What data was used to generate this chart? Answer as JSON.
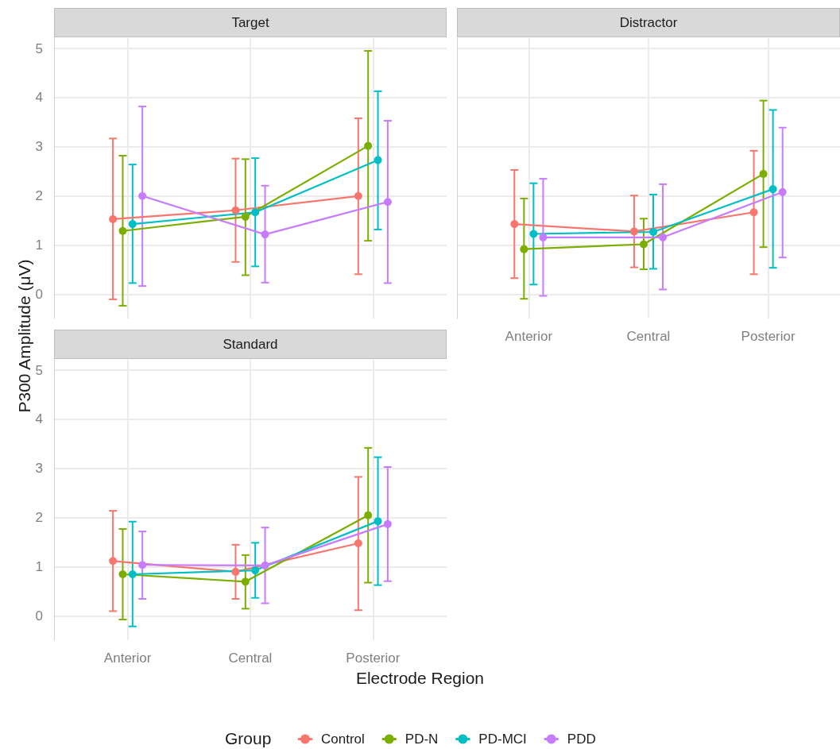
{
  "chart_data": [
    {
      "type": "line",
      "title": "Target",
      "ylabel": "P300 Amplitude (μV)",
      "categories": [
        null,
        null,
        null
      ],
      "ylim": [
        -0.49,
        5.21
      ],
      "yticks": [
        0,
        1,
        2,
        3,
        4,
        5
      ],
      "grid": true,
      "marker": "circle",
      "tick_labels": "y",
      "series": [
        {
          "color": "#f8766d",
          "values": [
            1.53,
            1.71,
            2.0
          ],
          "errors": [
            [
              -0.1,
              3.17
            ],
            [
              0.66,
              2.76
            ],
            [
              0.41,
              3.58
            ]
          ]
        },
        {
          "color": "#7cae00",
          "values": [
            1.29,
            1.58,
            3.02
          ],
          "errors": [
            [
              -0.23,
              2.82
            ],
            [
              0.39,
              2.75
            ],
            [
              1.09,
              4.95
            ]
          ]
        },
        {
          "color": "#00bfc4",
          "values": [
            1.43,
            1.67,
            2.73
          ],
          "errors": [
            [
              0.23,
              2.64
            ],
            [
              0.57,
              2.77
            ],
            [
              1.32,
              4.13
            ]
          ]
        },
        {
          "color": "#c77cff",
          "values": [
            2.0,
            1.22,
            1.88
          ],
          "errors": [
            [
              0.17,
              3.82
            ],
            [
              0.24,
              2.21
            ],
            [
              0.23,
              3.53
            ]
          ]
        }
      ]
    },
    {
      "type": "line",
      "title": "Distractor",
      "categories": [
        "Anterior",
        "Central",
        "Posterior"
      ],
      "ylim": [
        -0.49,
        5.21
      ],
      "yticks": [
        0,
        1,
        2,
        3,
        4,
        5
      ],
      "grid": true,
      "marker": "circle",
      "tick_labels": "x",
      "series": [
        {
          "color": "#f8766d",
          "values": [
            1.43,
            1.28,
            1.67
          ],
          "errors": [
            [
              0.33,
              2.53
            ],
            [
              0.55,
              2.01
            ],
            [
              0.41,
              2.92
            ]
          ]
        },
        {
          "color": "#7cae00",
          "values": [
            0.92,
            1.02,
            2.45
          ],
          "errors": [
            [
              -0.09,
              1.95
            ],
            [
              0.51,
              1.54
            ],
            [
              0.96,
              3.94
            ]
          ]
        },
        {
          "color": "#00bfc4",
          "values": [
            1.23,
            1.27,
            2.14
          ],
          "errors": [
            [
              0.2,
              2.26
            ],
            [
              0.52,
              2.03
            ],
            [
              0.54,
              3.75
            ]
          ]
        },
        {
          "color": "#c77cff",
          "values": [
            1.16,
            1.16,
            2.08
          ],
          "errors": [
            [
              -0.03,
              2.35
            ],
            [
              0.1,
              2.24
            ],
            [
              0.75,
              3.39
            ]
          ]
        }
      ]
    },
    {
      "type": "line",
      "title": "Standard",
      "xlabel": "Electrode Region",
      "legend_title": "Group",
      "legend": "bottom",
      "categories": [
        "Anterior",
        "Central",
        "Posterior"
      ],
      "ylim": [
        -0.49,
        5.21
      ],
      "yticks": [
        0,
        1,
        2,
        3,
        4,
        5
      ],
      "grid": true,
      "marker": "circle",
      "series": [
        {
          "name": "Control",
          "color": "#f8766d",
          "values": [
            1.12,
            0.9,
            1.48
          ],
          "errors": [
            [
              0.1,
              2.14
            ],
            [
              0.35,
              1.45
            ],
            [
              0.12,
              2.83
            ]
          ]
        },
        {
          "name": "PD-N",
          "color": "#7cae00",
          "values": [
            0.85,
            0.7,
            2.05
          ],
          "errors": [
            [
              -0.07,
              1.77
            ],
            [
              0.15,
              1.24
            ],
            [
              0.68,
              3.42
            ]
          ]
        },
        {
          "name": "PD-MCI",
          "color": "#00bfc4",
          "values": [
            0.85,
            0.93,
            1.93
          ],
          "errors": [
            [
              -0.21,
              1.92
            ],
            [
              0.37,
              1.49
            ],
            [
              0.63,
              3.23
            ]
          ]
        },
        {
          "name": "PDD",
          "color": "#c77cff",
          "values": [
            1.04,
            1.03,
            1.87
          ],
          "errors": [
            [
              0.35,
              1.72
            ],
            [
              0.26,
              1.8
            ],
            [
              0.71,
              3.03
            ]
          ]
        }
      ]
    }
  ]
}
